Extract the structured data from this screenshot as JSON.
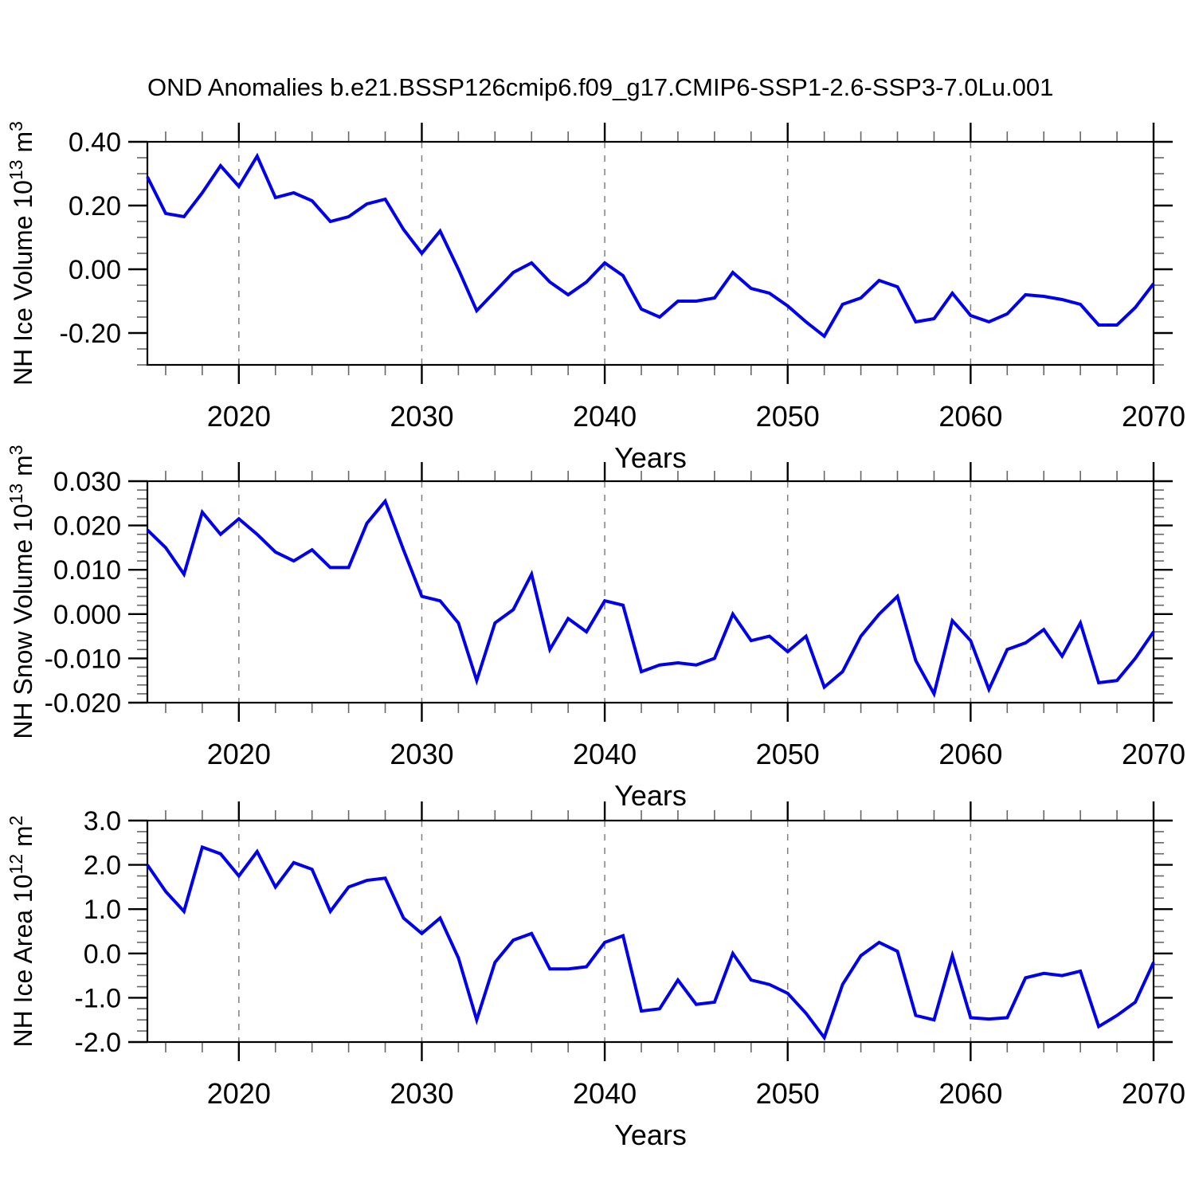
{
  "title": "OND Anomalies b.e21.BSSP126cmip6.f09_g17.CMIP6-SSP1-2.6-SSP3-7.0Lu.001",
  "colors": {
    "line": "#0000EE",
    "grid": "#808080",
    "axis": "#000000",
    "minor_tick": "#666666",
    "background": "#FFFFFF"
  },
  "chart_data": [
    {
      "id": "nh-ice-volume",
      "type": "line",
      "ylabel": "NH Ice Volume 10^13 m^3",
      "ylabel_segments": [
        {
          "t": "NH Ice Volume 10"
        },
        {
          "t": "13",
          "sup": true
        },
        {
          "t": " m"
        },
        {
          "t": "3",
          "sup": true
        }
      ],
      "xlabel": "Years",
      "xlim": [
        2015,
        2070
      ],
      "xticks": [
        2020,
        2030,
        2040,
        2050,
        2060,
        2070
      ],
      "xtick_labels": [
        "2020",
        "2030",
        "2040",
        "2050",
        "2060",
        "2070"
      ],
      "xminor_step": 2,
      "grid_x": [
        2020,
        2030,
        2040,
        2050,
        2060
      ],
      "grid_style": "vertical-dashed",
      "legend": "none",
      "ylim": [
        -0.3,
        0.4
      ],
      "yticks": [
        {
          "v": 0.4,
          "label": "0.40"
        },
        {
          "v": 0.2,
          "label": "0.20"
        },
        {
          "v": 0.0,
          "label": "0.00"
        },
        {
          "v": -0.2,
          "label": "-0.20"
        }
      ],
      "yminor_step": 0.05,
      "x": [
        2015,
        2016,
        2017,
        2018,
        2019,
        2020,
        2021,
        2022,
        2023,
        2024,
        2025,
        2026,
        2027,
        2028,
        2029,
        2030,
        2031,
        2032,
        2033,
        2034,
        2035,
        2036,
        2037,
        2038,
        2039,
        2040,
        2041,
        2042,
        2043,
        2044,
        2045,
        2046,
        2047,
        2048,
        2049,
        2050,
        2051,
        2052,
        2053,
        2054,
        2055,
        2056,
        2057,
        2058,
        2059,
        2060,
        2061,
        2062,
        2063,
        2064,
        2065,
        2066,
        2067,
        2068,
        2069,
        2070
      ],
      "values": [
        0.29,
        0.175,
        0.165,
        0.24,
        0.325,
        0.26,
        0.355,
        0.225,
        0.24,
        0.215,
        0.15,
        0.165,
        0.205,
        0.22,
        0.125,
        0.05,
        0.12,
        0.0,
        -0.13,
        -0.07,
        -0.01,
        0.02,
        -0.04,
        -0.08,
        -0.04,
        0.02,
        -0.02,
        -0.125,
        -0.15,
        -0.1,
        -0.1,
        -0.09,
        -0.01,
        -0.06,
        -0.075,
        -0.115,
        -0.165,
        -0.21,
        -0.11,
        -0.09,
        -0.035,
        -0.055,
        -0.165,
        -0.155,
        -0.075,
        -0.145,
        -0.165,
        -0.14,
        -0.08,
        -0.085,
        -0.095,
        -0.11,
        -0.175,
        -0.175,
        -0.12,
        -0.045
      ]
    },
    {
      "id": "nh-snow-volume",
      "type": "line",
      "ylabel": "NH Snow Volume 10^13 m^3",
      "ylabel_segments": [
        {
          "t": "NH Snow Volume 10"
        },
        {
          "t": "13",
          "sup": true
        },
        {
          "t": " m"
        },
        {
          "t": "3",
          "sup": true
        }
      ],
      "xlabel": "Years",
      "xlim": [
        2015,
        2070
      ],
      "xticks": [
        2020,
        2030,
        2040,
        2050,
        2060,
        2070
      ],
      "xtick_labels": [
        "2020",
        "2030",
        "2040",
        "2050",
        "2060",
        "2070"
      ],
      "xminor_step": 2,
      "grid_x": [
        2020,
        2030,
        2040,
        2050,
        2060
      ],
      "grid_style": "vertical-dashed",
      "legend": "none",
      "ylim": [
        -0.02,
        0.03
      ],
      "yticks": [
        {
          "v": 0.03,
          "label": "0.030"
        },
        {
          "v": 0.02,
          "label": "0.020"
        },
        {
          "v": 0.01,
          "label": "0.010"
        },
        {
          "v": 0.0,
          "label": "0.000"
        },
        {
          "v": -0.01,
          "label": "-0.010"
        },
        {
          "v": -0.02,
          "label": "-0.020"
        }
      ],
      "yminor_step": 0.002,
      "x": [
        2015,
        2016,
        2017,
        2018,
        2019,
        2020,
        2021,
        2022,
        2023,
        2024,
        2025,
        2026,
        2027,
        2028,
        2029,
        2030,
        2031,
        2032,
        2033,
        2034,
        2035,
        2036,
        2037,
        2038,
        2039,
        2040,
        2041,
        2042,
        2043,
        2044,
        2045,
        2046,
        2047,
        2048,
        2049,
        2050,
        2051,
        2052,
        2053,
        2054,
        2055,
        2056,
        2057,
        2058,
        2059,
        2060,
        2061,
        2062,
        2063,
        2064,
        2065,
        2066,
        2067,
        2068,
        2069,
        2070
      ],
      "values": [
        0.019,
        0.015,
        0.009,
        0.023,
        0.018,
        0.0215,
        0.018,
        0.014,
        0.012,
        0.0145,
        0.0105,
        0.0105,
        0.0205,
        0.0255,
        0.0145,
        0.004,
        0.003,
        -0.002,
        -0.015,
        -0.002,
        0.001,
        0.009,
        -0.008,
        -0.001,
        -0.004,
        0.003,
        0.002,
        -0.013,
        -0.0115,
        -0.011,
        -0.0115,
        -0.01,
        0.0,
        -0.006,
        -0.005,
        -0.0085,
        -0.005,
        -0.0165,
        -0.013,
        -0.005,
        0.0,
        0.004,
        -0.0105,
        -0.018,
        -0.0015,
        -0.006,
        -0.017,
        -0.008,
        -0.0065,
        -0.0035,
        -0.0095,
        -0.002,
        -0.0155,
        -0.015,
        -0.01,
        -0.004
      ]
    },
    {
      "id": "nh-ice-area",
      "type": "line",
      "ylabel": "NH Ice Area 10^12 m^2",
      "ylabel_segments": [
        {
          "t": "NH Ice Area 10"
        },
        {
          "t": "12",
          "sup": true
        },
        {
          "t": " m"
        },
        {
          "t": "2",
          "sup": true
        }
      ],
      "xlabel": "Years",
      "xlim": [
        2015,
        2070
      ],
      "xticks": [
        2020,
        2030,
        2040,
        2050,
        2060,
        2070
      ],
      "xtick_labels": [
        "2020",
        "2030",
        "2040",
        "2050",
        "2060",
        "2070"
      ],
      "xminor_step": 2,
      "grid_x": [
        2020,
        2030,
        2040,
        2050,
        2060
      ],
      "grid_style": "vertical-dashed",
      "legend": "none",
      "ylim": [
        -2.0,
        3.0
      ],
      "yticks": [
        {
          "v": 3.0,
          "label": "3.0"
        },
        {
          "v": 2.0,
          "label": "2.0"
        },
        {
          "v": 1.0,
          "label": "1.0"
        },
        {
          "v": 0.0,
          "label": "0.0"
        },
        {
          "v": -1.0,
          "label": "-1.0"
        },
        {
          "v": -2.0,
          "label": "-2.0"
        }
      ],
      "yminor_step": 0.25,
      "x": [
        2015,
        2016,
        2017,
        2018,
        2019,
        2020,
        2021,
        2022,
        2023,
        2024,
        2025,
        2026,
        2027,
        2028,
        2029,
        2030,
        2031,
        2032,
        2033,
        2034,
        2035,
        2036,
        2037,
        2038,
        2039,
        2040,
        2041,
        2042,
        2043,
        2044,
        2045,
        2046,
        2047,
        2048,
        2049,
        2050,
        2051,
        2052,
        2053,
        2054,
        2055,
        2056,
        2057,
        2058,
        2059,
        2060,
        2061,
        2062,
        2063,
        2064,
        2065,
        2066,
        2067,
        2068,
        2069,
        2070
      ],
      "values": [
        2.0,
        1.4,
        0.95,
        2.4,
        2.25,
        1.75,
        2.3,
        1.5,
        2.05,
        1.9,
        0.95,
        1.5,
        1.65,
        1.7,
        0.8,
        0.45,
        0.8,
        -0.1,
        -1.5,
        -0.2,
        0.3,
        0.45,
        -0.35,
        -0.35,
        -0.3,
        0.25,
        0.4,
        -1.3,
        -1.25,
        -0.6,
        -1.15,
        -1.1,
        0.0,
        -0.6,
        -0.7,
        -0.9,
        -1.35,
        -1.9,
        -0.7,
        -0.05,
        0.25,
        0.05,
        -1.4,
        -1.5,
        -0.05,
        -1.45,
        -1.48,
        -1.45,
        -0.55,
        -0.45,
        -0.5,
        -0.4,
        -1.65,
        -1.4,
        -1.1,
        -0.2
      ]
    }
  ]
}
